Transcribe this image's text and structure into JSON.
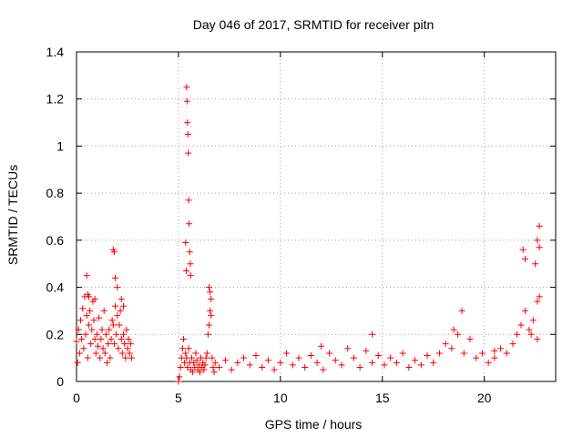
{
  "chart_data": {
    "type": "scatter",
    "title": "Day 046 of 2017, SRMTID for receiver pitn",
    "xlabel": "GPS time / hours",
    "ylabel": "SRMTID / TECUs",
    "xlim": [
      0,
      23.5
    ],
    "ylim": [
      0,
      1.4
    ],
    "xticks": [
      0,
      5,
      10,
      15,
      20
    ],
    "yticks": [
      0,
      0.2,
      0.4,
      0.6,
      0.8,
      1,
      1.2,
      1.4
    ],
    "grid": true,
    "marker": "+",
    "series": [
      {
        "name": "SRMTID",
        "color": "#ff0000",
        "x": [
          0.0,
          0.05,
          0.1,
          0.15,
          0.2,
          0.25,
          0.3,
          0.35,
          0.4,
          0.45,
          0.5,
          0.55,
          0.6,
          0.65,
          0.7,
          0.75,
          0.8,
          0.85,
          0.9,
          0.95,
          1.0,
          1.05,
          1.1,
          1.15,
          1.2,
          1.25,
          1.3,
          1.35,
          1.4,
          1.45,
          1.5,
          1.55,
          1.6,
          1.65,
          1.7,
          1.75,
          1.8,
          1.85,
          1.9,
          1.95,
          2.0,
          2.05,
          2.1,
          2.15,
          2.2,
          2.25,
          2.3,
          2.35,
          2.4,
          2.45,
          2.5,
          2.55,
          2.6,
          2.65,
          2.7,
          0.5,
          0.55,
          1.8,
          1.85,
          1.9,
          2.0,
          2.2,
          2.3,
          0.6,
          0.9,
          5.0,
          5.05,
          5.1,
          5.15,
          5.2,
          5.25,
          5.3,
          5.35,
          5.4,
          5.45,
          5.5,
          5.55,
          5.6,
          5.65,
          5.7,
          5.75,
          5.8,
          5.85,
          5.9,
          5.95,
          6.0,
          6.05,
          6.1,
          6.15,
          6.2,
          6.25,
          6.3,
          6.35,
          6.4,
          6.45,
          6.5,
          6.55,
          6.6,
          6.65,
          6.7,
          6.75,
          6.8,
          5.4,
          5.42,
          5.44,
          5.46,
          5.48,
          5.5,
          5.52,
          5.55,
          5.58,
          5.6,
          5.35,
          5.38,
          6.5,
          6.55,
          6.6,
          7.0,
          7.3,
          7.6,
          7.9,
          8.2,
          8.5,
          8.8,
          9.1,
          9.4,
          9.7,
          10.0,
          10.3,
          10.6,
          10.9,
          11.2,
          11.5,
          11.8,
          12.1,
          12.4,
          12.7,
          13.0,
          13.3,
          13.6,
          13.9,
          14.2,
          14.5,
          14.8,
          15.1,
          15.4,
          15.7,
          16.0,
          16.3,
          16.6,
          16.9,
          17.2,
          17.5,
          17.8,
          18.1,
          18.4,
          18.7,
          19.0,
          19.3,
          19.6,
          19.9,
          20.2,
          20.5,
          20.8,
          21.1,
          21.4,
          21.6,
          21.8,
          22.0,
          22.2,
          22.4,
          22.6,
          22.7,
          21.9,
          22.0,
          22.7,
          22.6,
          22.5,
          18.5,
          18.9,
          12.0,
          14.5,
          20.5,
          22.3,
          22.6,
          22.7
        ],
        "y": [
          0.17,
          0.08,
          0.22,
          0.12,
          0.26,
          0.18,
          0.31,
          0.14,
          0.36,
          0.2,
          0.28,
          0.1,
          0.24,
          0.3,
          0.16,
          0.22,
          0.34,
          0.26,
          0.18,
          0.12,
          0.2,
          0.15,
          0.27,
          0.1,
          0.18,
          0.22,
          0.14,
          0.3,
          0.12,
          0.2,
          0.08,
          0.16,
          0.22,
          0.1,
          0.18,
          0.26,
          0.24,
          0.16,
          0.32,
          0.2,
          0.28,
          0.14,
          0.24,
          0.3,
          0.18,
          0.12,
          0.2,
          0.16,
          0.1,
          0.22,
          0.14,
          0.18,
          0.12,
          0.16,
          0.1,
          0.45,
          0.37,
          0.56,
          0.55,
          0.44,
          0.4,
          0.35,
          0.32,
          0.36,
          0.35,
          0.0,
          0.02,
          0.06,
          0.1,
          0.14,
          0.18,
          0.08,
          0.12,
          0.1,
          0.06,
          0.14,
          0.08,
          0.05,
          0.1,
          0.04,
          0.08,
          0.06,
          0.12,
          0.09,
          0.05,
          0.07,
          0.04,
          0.1,
          0.06,
          0.08,
          0.05,
          0.07,
          0.1,
          0.12,
          0.2,
          0.24,
          0.3,
          0.35,
          0.1,
          0.06,
          0.04,
          0.08,
          1.25,
          1.19,
          1.1,
          1.05,
          0.97,
          0.77,
          0.67,
          0.55,
          0.5,
          0.45,
          0.59,
          0.47,
          0.4,
          0.38,
          0.28,
          0.06,
          0.09,
          0.05,
          0.08,
          0.1,
          0.07,
          0.11,
          0.06,
          0.09,
          0.05,
          0.08,
          0.12,
          0.07,
          0.1,
          0.06,
          0.11,
          0.08,
          0.05,
          0.12,
          0.09,
          0.07,
          0.14,
          0.1,
          0.06,
          0.13,
          0.08,
          0.11,
          0.07,
          0.1,
          0.08,
          0.12,
          0.06,
          0.09,
          0.07,
          0.11,
          0.08,
          0.12,
          0.16,
          0.14,
          0.2,
          0.12,
          0.18,
          0.1,
          0.12,
          0.08,
          0.1,
          0.14,
          0.12,
          0.16,
          0.2,
          0.24,
          0.3,
          0.22,
          0.26,
          0.18,
          0.36,
          0.56,
          0.52,
          0.66,
          0.6,
          0.5,
          0.22,
          0.3,
          0.15,
          0.2,
          0.13,
          0.2,
          0.34,
          0.57
        ]
      }
    ]
  }
}
